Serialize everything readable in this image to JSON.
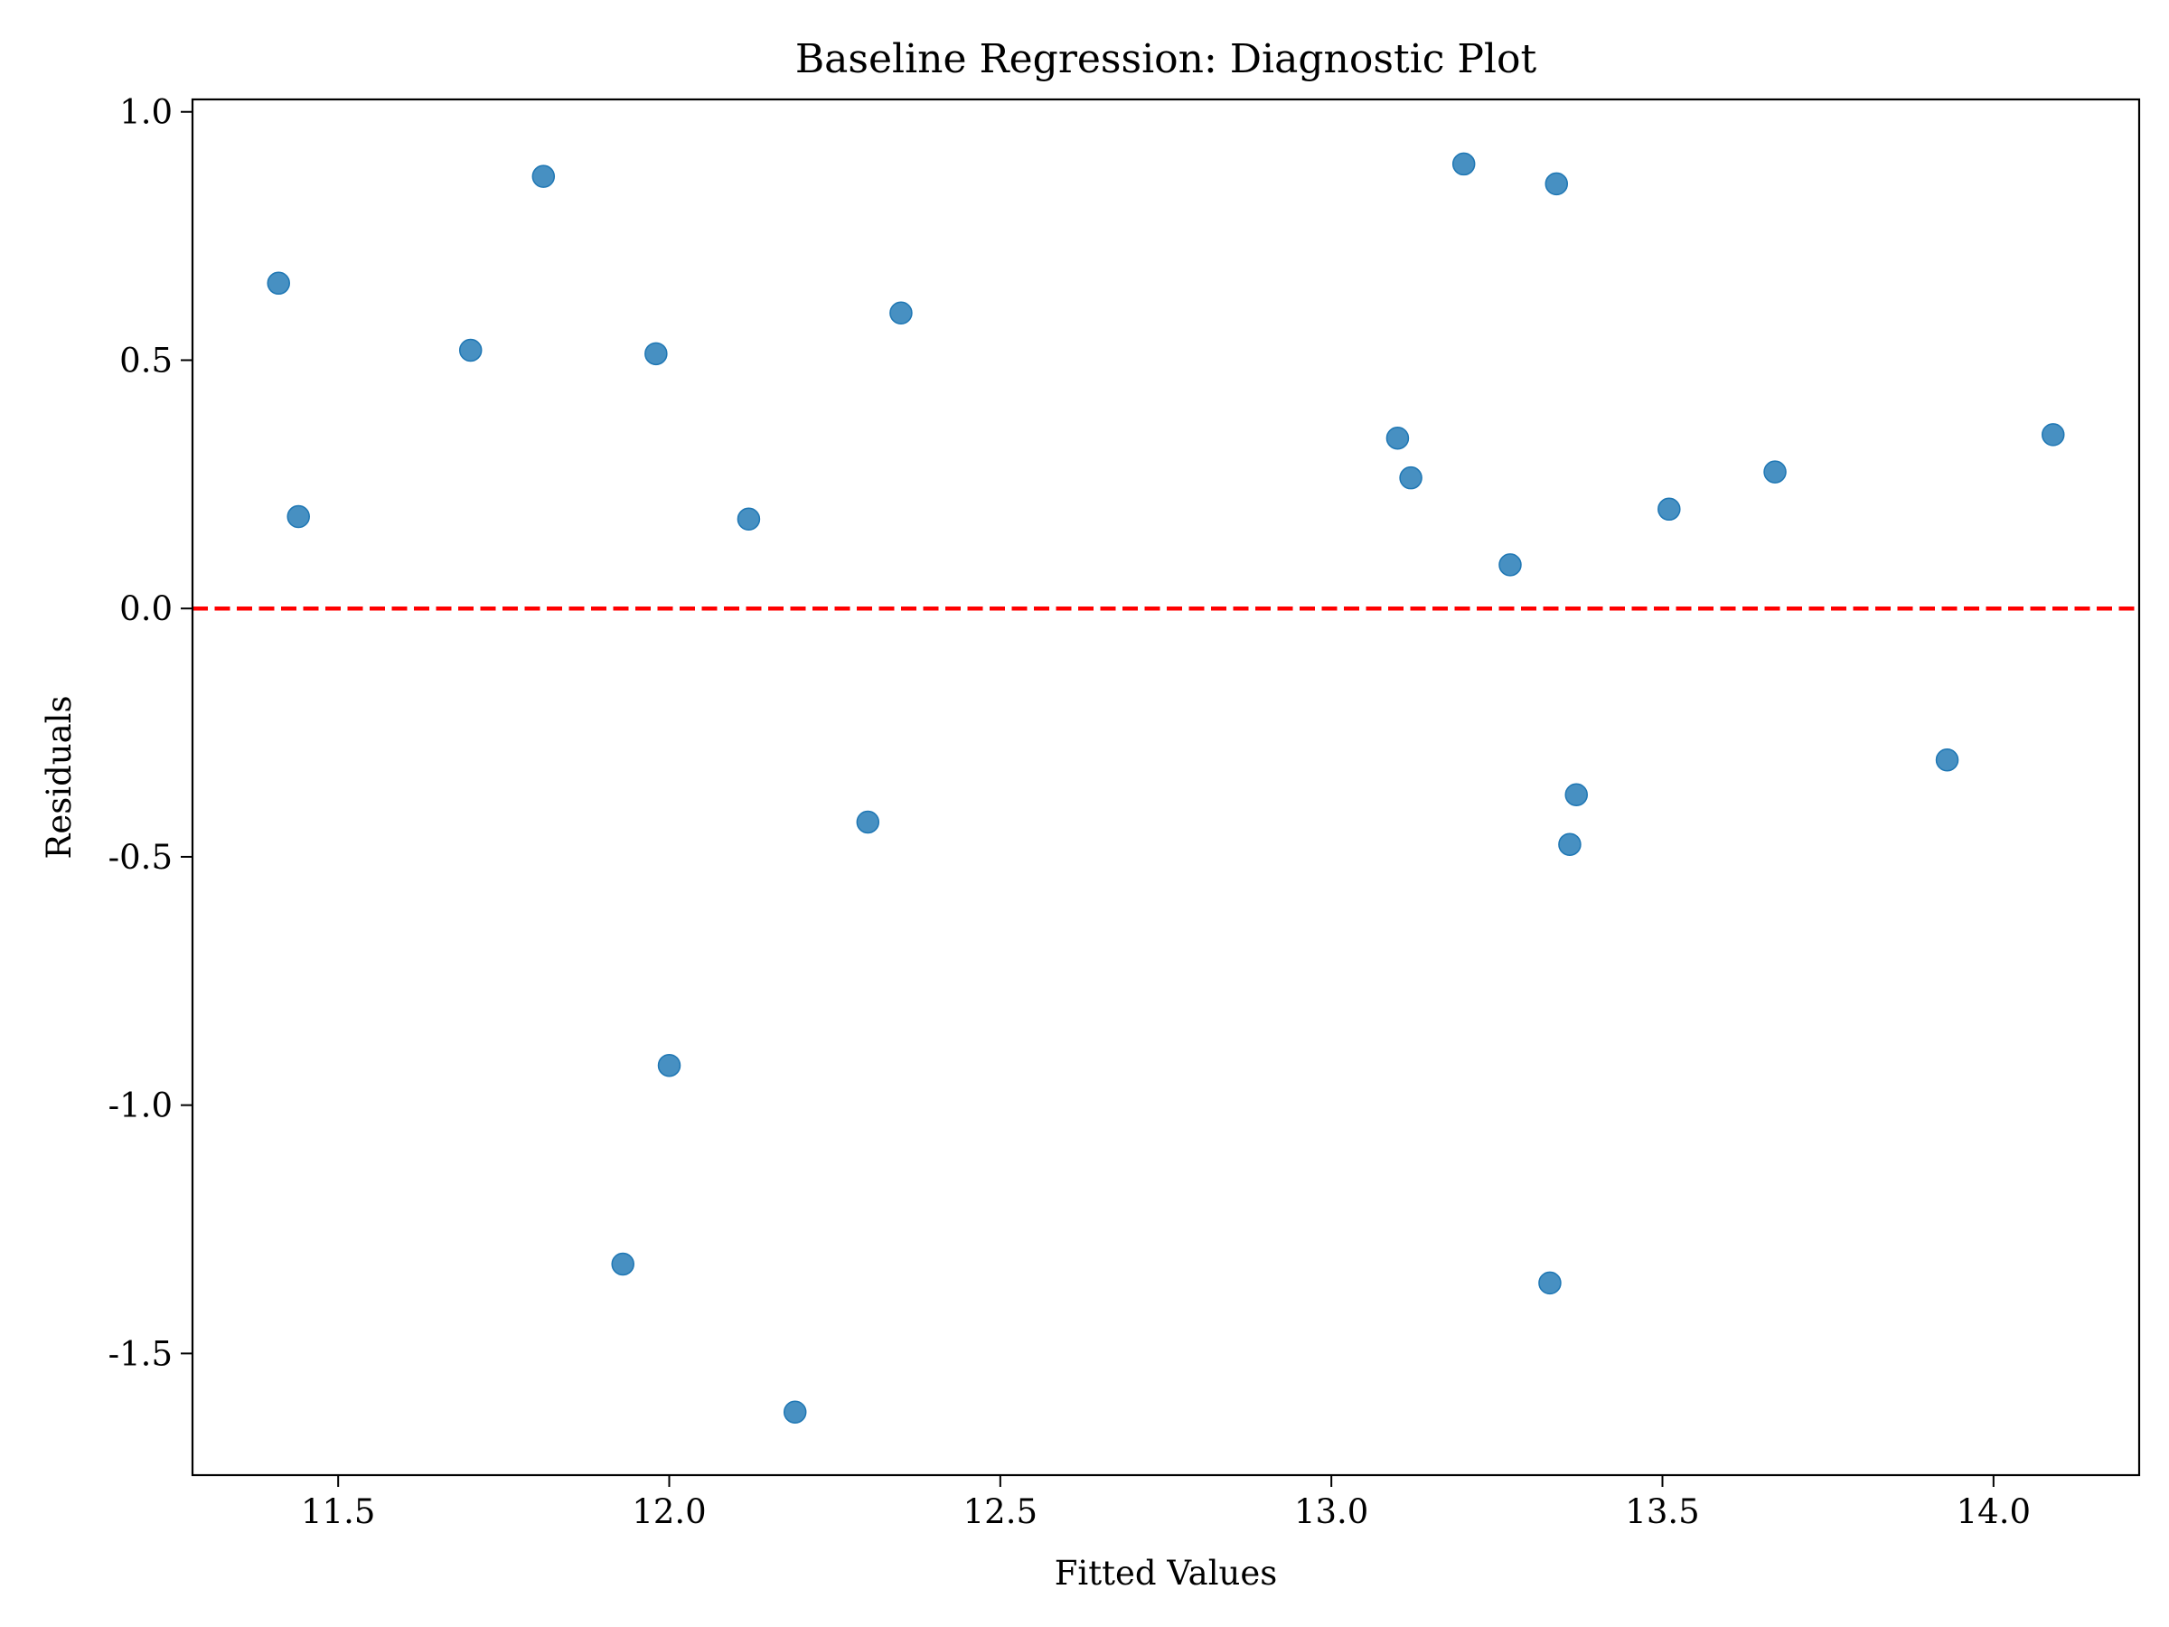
{
  "chart_data": {
    "type": "scatter",
    "title": "Baseline Regression: Diagnostic Plot",
    "xlabel": "Fitted Values",
    "ylabel": "Residuals",
    "xlim": [
      11.28,
      14.22
    ],
    "ylim": [
      -1.745,
      1.025
    ],
    "x_ticks": [
      11.5,
      12.0,
      12.5,
      13.0,
      13.5,
      14.0
    ],
    "x_tick_labels": [
      "11.5",
      "12.0",
      "12.5",
      "13.0",
      "13.5",
      "14.0"
    ],
    "y_ticks": [
      1.0,
      0.5,
      0.0,
      -0.5,
      -1.0,
      -1.5
    ],
    "y_tick_labels": [
      "1.0",
      "0.5",
      "0.0",
      "-0.5",
      "-1.0",
      "-1.5"
    ],
    "reference_line": {
      "y": 0.0,
      "style": "dashed",
      "color": "#ff0000"
    },
    "point_color": "#1f77b4",
    "grid": false,
    "points": [
      {
        "x": 11.41,
        "y": 0.655
      },
      {
        "x": 11.44,
        "y": 0.185
      },
      {
        "x": 11.7,
        "y": 0.52
      },
      {
        "x": 11.81,
        "y": 0.87
      },
      {
        "x": 11.93,
        "y": -1.32
      },
      {
        "x": 11.98,
        "y": 0.513
      },
      {
        "x": 12.0,
        "y": -0.92
      },
      {
        "x": 12.12,
        "y": 0.18
      },
      {
        "x": 12.19,
        "y": -1.618
      },
      {
        "x": 12.3,
        "y": -0.43
      },
      {
        "x": 12.35,
        "y": 0.595
      },
      {
        "x": 13.1,
        "y": 0.343
      },
      {
        "x": 13.12,
        "y": 0.263
      },
      {
        "x": 13.2,
        "y": 0.895
      },
      {
        "x": 13.27,
        "y": 0.088
      },
      {
        "x": 13.33,
        "y": -1.358
      },
      {
        "x": 13.34,
        "y": 0.855
      },
      {
        "x": 13.36,
        "y": -0.475
      },
      {
        "x": 13.37,
        "y": -0.375
      },
      {
        "x": 13.51,
        "y": 0.2
      },
      {
        "x": 13.67,
        "y": 0.275
      },
      {
        "x": 13.93,
        "y": -0.305
      },
      {
        "x": 14.09,
        "y": 0.35
      }
    ]
  }
}
